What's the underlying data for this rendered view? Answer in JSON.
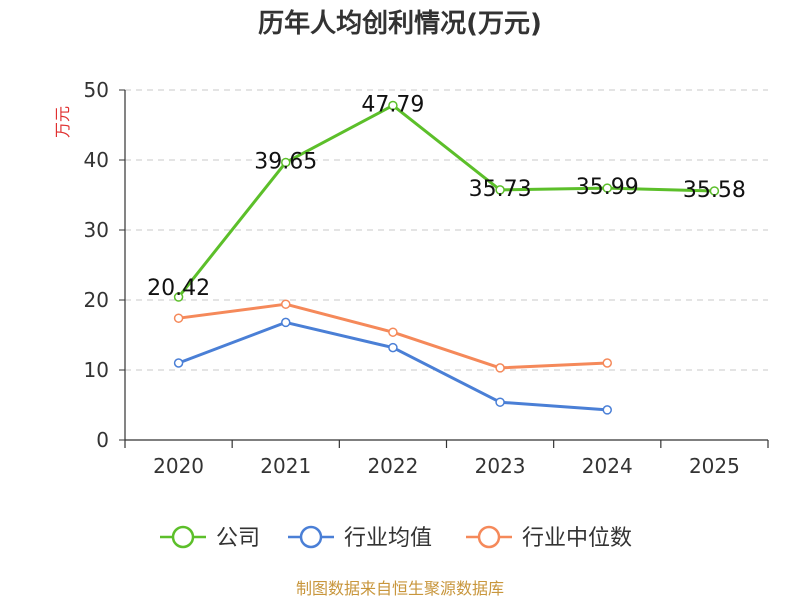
{
  "chart_data": {
    "type": "line",
    "title": "历年人均创利情况(万元)",
    "ylabel": "万元",
    "xlabel": "",
    "categories": [
      "2020",
      "2021",
      "2022",
      "2023",
      "2024",
      "2025"
    ],
    "ylim": [
      0,
      50
    ],
    "yticks": [
      "0",
      "10",
      "20",
      "30",
      "40",
      "50"
    ],
    "grid": true,
    "legend_position": "bottom",
    "series": [
      {
        "name": "公司",
        "color": "#5cbf2a",
        "values": [
          20.42,
          39.65,
          47.79,
          35.73,
          35.99,
          35.58
        ],
        "labels": [
          "20.42",
          "39.65",
          "47.79",
          "35.73",
          "35.99",
          "35.58"
        ]
      },
      {
        "name": "行业均值",
        "color": "#4a7fd6",
        "values": [
          11.0,
          16.8,
          13.2,
          5.4,
          4.3,
          null
        ]
      },
      {
        "name": "行业中位数",
        "color": "#f5895a",
        "values": [
          17.4,
          19.4,
          15.4,
          10.3,
          11.0,
          null
        ]
      }
    ]
  },
  "source": "制图数据来自恒生聚源数据库"
}
